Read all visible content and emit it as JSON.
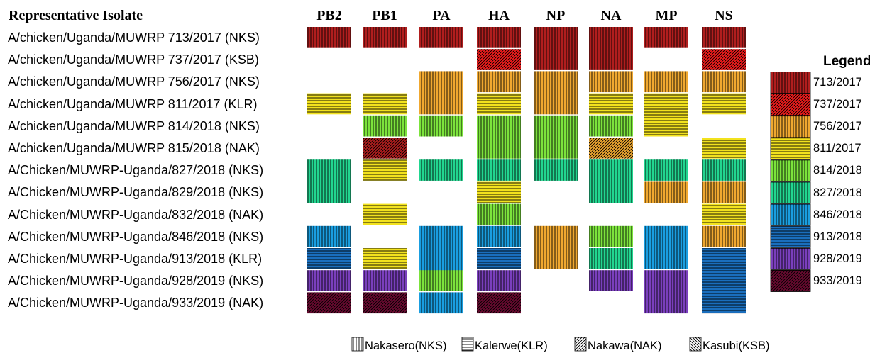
{
  "header": {
    "isolate_column": "Representative Isolate",
    "segments": [
      "PB2",
      "PB1",
      "PA",
      "HA",
      "NP",
      "NA",
      "MP",
      "NS"
    ]
  },
  "isolates": [
    "A/chicken/Uganda/MUWRP 713/2017 (NKS)",
    "A/chicken/Uganda/MUWRP 737/2017 (KSB)",
    "A/chicken/Uganda/MUWRP 756/2017 (NKS)",
    "A/chicken/Uganda/MUWRP 811/2017 (KLR)",
    "A/chicken/Uganda/MUWRP 814/2018 (NKS)",
    "A/chicken/Uganda/MUWRP 815/2018 (NAK)",
    "A/Chicken/MUWRP-Uganda/827/2018 (NKS)",
    "A/Chicken/MUWRP-Uganda/829/2018 (NKS)",
    "A/Chicken/MUWRP-Uganda/832/2018 (NAK)",
    "A/Chicken/MUWRP-Uganda/846/2018 (NKS)",
    "A/Chicken/MUWRP-Uganda/913/2018 (KLR)",
    "A/Chicken/MUWRP-Uganda/928/2019 (NKS)",
    "A/Chicken/MUWRP-Uganda/933/2019 (NAK)"
  ],
  "legend": {
    "title": "Legend",
    "items": [
      {
        "label": "713/2017",
        "color": "#b01e1e",
        "pattern": "v"
      },
      {
        "label": "737/2017",
        "color": "#f21c1c",
        "pattern": "d"
      },
      {
        "label": "756/2017",
        "color": "#f0a830",
        "pattern": "v"
      },
      {
        "label": "811/2017",
        "color": "#f2e21e",
        "pattern": "h"
      },
      {
        "label": "814/2018",
        "color": "#7ce33c",
        "pattern": "v"
      },
      {
        "label": "827/2018",
        "color": "#22d690",
        "pattern": "v"
      },
      {
        "label": "846/2018",
        "color": "#1a9ee0",
        "pattern": "v"
      },
      {
        "label": "913/2018",
        "color": "#1a6ebd",
        "pattern": "h"
      },
      {
        "label": "928/2019",
        "color": "#7a3fbd",
        "pattern": "v"
      },
      {
        "label": "933/2019",
        "color": "#6a0a30",
        "pattern": "d"
      }
    ]
  },
  "locations": [
    {
      "label": "Nakasero(NKS)",
      "pattern": "v",
      "icon": "vertical-lines-icon"
    },
    {
      "label": "Kalerwe(KLR)",
      "pattern": "h",
      "icon": "horizontal-lines-icon"
    },
    {
      "label": "Nakawa(NAK)",
      "pattern": "d",
      "icon": "diagonal-lines-icon"
    },
    {
      "label": "Kasubi(KSB)",
      "pattern": "b",
      "icon": "back-diagonal-lines-icon"
    }
  ],
  "cells": [
    {
      "segment": "PB2",
      "rows": [
        0,
        0
      ],
      "lineage": "713/2017",
      "pattern": "v"
    },
    {
      "segment": "PB1",
      "rows": [
        0,
        0
      ],
      "lineage": "713/2017",
      "pattern": "v"
    },
    {
      "segment": "PA",
      "rows": [
        0,
        0
      ],
      "lineage": "713/2017",
      "pattern": "v"
    },
    {
      "segment": "HA",
      "rows": [
        0,
        0
      ],
      "lineage": "713/2017",
      "pattern": "v"
    },
    {
      "segment": "NP",
      "rows": [
        0,
        1
      ],
      "lineage": "713/2017",
      "pattern": "v"
    },
    {
      "segment": "NA",
      "rows": [
        0,
        1
      ],
      "lineage": "713/2017",
      "pattern": "v"
    },
    {
      "segment": "MP",
      "rows": [
        0,
        0
      ],
      "lineage": "713/2017",
      "pattern": "v"
    },
    {
      "segment": "NS",
      "rows": [
        0,
        0
      ],
      "lineage": "713/2017",
      "pattern": "v"
    },
    {
      "segment": "HA",
      "rows": [
        1,
        1
      ],
      "lineage": "737/2017",
      "pattern": "d"
    },
    {
      "segment": "NS",
      "rows": [
        1,
        1
      ],
      "lineage": "737/2017",
      "pattern": "d"
    },
    {
      "segment": "PA",
      "rows": [
        2,
        3
      ],
      "lineage": "756/2017",
      "pattern": "v"
    },
    {
      "segment": "HA",
      "rows": [
        2,
        2
      ],
      "lineage": "756/2017",
      "pattern": "v"
    },
    {
      "segment": "NP",
      "rows": [
        2,
        3
      ],
      "lineage": "756/2017",
      "pattern": "v"
    },
    {
      "segment": "NA",
      "rows": [
        2,
        2
      ],
      "lineage": "756/2017",
      "pattern": "v"
    },
    {
      "segment": "MP",
      "rows": [
        2,
        2
      ],
      "lineage": "756/2017",
      "pattern": "v"
    },
    {
      "segment": "NS",
      "rows": [
        2,
        2
      ],
      "lineage": "756/2017",
      "pattern": "v"
    },
    {
      "segment": "PB2",
      "rows": [
        3,
        3
      ],
      "lineage": "811/2017",
      "pattern": "h"
    },
    {
      "segment": "PB1",
      "rows": [
        3,
        3
      ],
      "lineage": "811/2017",
      "pattern": "h"
    },
    {
      "segment": "HA",
      "rows": [
        3,
        3
      ],
      "lineage": "811/2017",
      "pattern": "h"
    },
    {
      "segment": "NA",
      "rows": [
        3,
        3
      ],
      "lineage": "811/2017",
      "pattern": "h"
    },
    {
      "segment": "MP",
      "rows": [
        3,
        4
      ],
      "lineage": "811/2017",
      "pattern": "h"
    },
    {
      "segment": "NS",
      "rows": [
        3,
        3
      ],
      "lineage": "811/2017",
      "pattern": "h"
    },
    {
      "segment": "PB1",
      "rows": [
        4,
        4
      ],
      "lineage": "814/2018",
      "pattern": "v"
    },
    {
      "segment": "PA",
      "rows": [
        4,
        4
      ],
      "lineage": "814/2018",
      "pattern": "v"
    },
    {
      "segment": "HA",
      "rows": [
        4,
        5
      ],
      "lineage": "814/2018",
      "pattern": "v"
    },
    {
      "segment": "NP",
      "rows": [
        4,
        5
      ],
      "lineage": "814/2018",
      "pattern": "v"
    },
    {
      "segment": "NA",
      "rows": [
        4,
        4
      ],
      "lineage": "814/2018",
      "pattern": "v"
    },
    {
      "segment": "PB1",
      "rows": [
        5,
        5
      ],
      "lineage": "713/2017",
      "pattern": "d"
    },
    {
      "segment": "NA",
      "rows": [
        5,
        5
      ],
      "lineage": "756/2017",
      "pattern": "d"
    },
    {
      "segment": "NS",
      "rows": [
        5,
        5
      ],
      "lineage": "811/2017",
      "pattern": "h"
    },
    {
      "segment": "PB2",
      "rows": [
        6,
        7
      ],
      "lineage": "827/2018",
      "pattern": "v"
    },
    {
      "segment": "PB1",
      "rows": [
        6,
        6
      ],
      "lineage": "811/2017",
      "pattern": "h"
    },
    {
      "segment": "PA",
      "rows": [
        6,
        6
      ],
      "lineage": "827/2018",
      "pattern": "v"
    },
    {
      "segment": "HA",
      "rows": [
        6,
        6
      ],
      "lineage": "827/2018",
      "pattern": "v"
    },
    {
      "segment": "NP",
      "rows": [
        6,
        6
      ],
      "lineage": "827/2018",
      "pattern": "v"
    },
    {
      "segment": "NA",
      "rows": [
        6,
        7
      ],
      "lineage": "827/2018",
      "pattern": "v"
    },
    {
      "segment": "MP",
      "rows": [
        6,
        6
      ],
      "lineage": "827/2018",
      "pattern": "v"
    },
    {
      "segment": "NS",
      "rows": [
        6,
        6
      ],
      "lineage": "827/2018",
      "pattern": "v"
    },
    {
      "segment": "HA",
      "rows": [
        7,
        7
      ],
      "lineage": "811/2017",
      "pattern": "h"
    },
    {
      "segment": "MP",
      "rows": [
        7,
        7
      ],
      "lineage": "756/2017",
      "pattern": "v"
    },
    {
      "segment": "NS",
      "rows": [
        7,
        7
      ],
      "lineage": "756/2017",
      "pattern": "v"
    },
    {
      "segment": "PB1",
      "rows": [
        8,
        8
      ],
      "lineage": "811/2017",
      "pattern": "h"
    },
    {
      "segment": "HA",
      "rows": [
        8,
        8
      ],
      "lineage": "814/2018",
      "pattern": "v"
    },
    {
      "segment": "NS",
      "rows": [
        8,
        8
      ],
      "lineage": "811/2017",
      "pattern": "h"
    },
    {
      "segment": "PB2",
      "rows": [
        9,
        9
      ],
      "lineage": "846/2018",
      "pattern": "v"
    },
    {
      "segment": "PA",
      "rows": [
        9,
        11
      ],
      "lineage": "846/2018",
      "pattern": "v"
    },
    {
      "segment": "HA",
      "rows": [
        9,
        9
      ],
      "lineage": "846/2018",
      "pattern": "v"
    },
    {
      "segment": "NP",
      "rows": [
        9,
        10
      ],
      "lineage": "756/2017",
      "pattern": "v"
    },
    {
      "segment": "NA",
      "rows": [
        9,
        9
      ],
      "lineage": "814/2018",
      "pattern": "v"
    },
    {
      "segment": "MP",
      "rows": [
        9,
        10
      ],
      "lineage": "846/2018",
      "pattern": "v"
    },
    {
      "segment": "NS",
      "rows": [
        9,
        9
      ],
      "lineage": "756/2017",
      "pattern": "v"
    },
    {
      "segment": "PB2",
      "rows": [
        10,
        10
      ],
      "lineage": "913/2018",
      "pattern": "h"
    },
    {
      "segment": "PB1",
      "rows": [
        10,
        10
      ],
      "lineage": "811/2017",
      "pattern": "h"
    },
    {
      "segment": "HA",
      "rows": [
        10,
        10
      ],
      "lineage": "913/2018",
      "pattern": "h"
    },
    {
      "segment": "NA",
      "rows": [
        10,
        10
      ],
      "lineage": "827/2018",
      "pattern": "v"
    },
    {
      "segment": "NS",
      "rows": [
        10,
        12
      ],
      "lineage": "913/2018",
      "pattern": "h"
    },
    {
      "segment": "PB2",
      "rows": [
        11,
        11
      ],
      "lineage": "928/2019",
      "pattern": "v"
    },
    {
      "segment": "PB1",
      "rows": [
        11,
        11
      ],
      "lineage": "928/2019",
      "pattern": "v"
    },
    {
      "segment": "PA",
      "rows": [
        11,
        11
      ],
      "lineage": "814/2018",
      "pattern": "v"
    },
    {
      "segment": "HA",
      "rows": [
        11,
        11
      ],
      "lineage": "928/2019",
      "pattern": "v"
    },
    {
      "segment": "NA",
      "rows": [
        11,
        11
      ],
      "lineage": "928/2019",
      "pattern": "v"
    },
    {
      "segment": "MP",
      "rows": [
        11,
        12
      ],
      "lineage": "928/2019",
      "pattern": "v"
    },
    {
      "segment": "PB2",
      "rows": [
        12,
        12
      ],
      "lineage": "933/2019",
      "pattern": "d"
    },
    {
      "segment": "PB1",
      "rows": [
        12,
        12
      ],
      "lineage": "933/2019",
      "pattern": "d"
    },
    {
      "segment": "PA",
      "rows": [
        12,
        12
      ],
      "lineage": "846/2018",
      "pattern": "v"
    },
    {
      "segment": "HA",
      "rows": [
        12,
        12
      ],
      "lineage": "933/2019",
      "pattern": "d"
    }
  ]
}
